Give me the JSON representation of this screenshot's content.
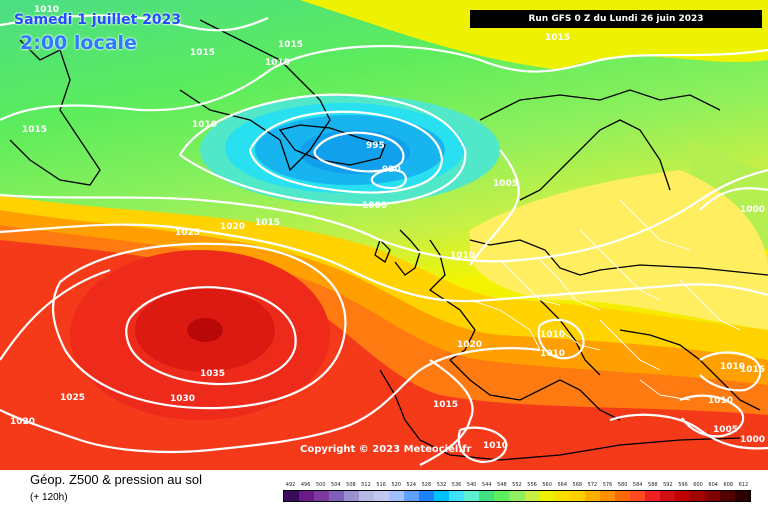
{
  "header": {
    "date_line": "Samedi 1 juillet 2023",
    "time_line": "2:00 locale",
    "run_banner": "Run GFS 0 Z du Lundi 26 juin 2023"
  },
  "copyright": "Copyright © 2023 Meteociel.fr",
  "footer": {
    "title": "Géop. Z500 & pression au sol",
    "subtitle": "(+ 120h)"
  },
  "scale": {
    "ticks": [
      "492",
      "496",
      "500",
      "504",
      "508",
      "512",
      "516",
      "520",
      "524",
      "528",
      "532",
      "536",
      "540",
      "544",
      "548",
      "552",
      "556",
      "560",
      "564",
      "568",
      "572",
      "576",
      "580",
      "584",
      "588",
      "592",
      "596",
      "600",
      "604",
      "608",
      "612"
    ],
    "colors": [
      "#3a0a5c",
      "#6a1a8a",
      "#7a3aa0",
      "#8060b8",
      "#9a90d0",
      "#b8b8e8",
      "#c0c8f0",
      "#a0c0ff",
      "#60a0ff",
      "#2080ff",
      "#00c0ff",
      "#40e0ff",
      "#60f0d0",
      "#40e080",
      "#60ee60",
      "#90f060",
      "#c8f040",
      "#f0f000",
      "#f8e000",
      "#ffd000",
      "#ffb000",
      "#ff9000",
      "#ff6a00",
      "#ff4a20",
      "#f02020",
      "#d01010",
      "#c00000",
      "#a00000",
      "#800000",
      "#500000",
      "#2a0000"
    ]
  },
  "pressure_labels": {
    "l1010a": "1010",
    "l1015a": "1015",
    "l1015b": "1015",
    "l1015c": "1015",
    "l1015d": "1015",
    "l1015e": "1015",
    "l1010b": "1010",
    "l995": "995",
    "l990": "990",
    "l1000a": "1000",
    "l1005a": "1005",
    "l1000b": "1000",
    "l1025a": "1025",
    "l1020a": "1020",
    "l1015f": "1015",
    "l1010c": "1010",
    "l1010d": "1010",
    "l1010e": "1010",
    "l1020b": "1020",
    "l1035": "1035",
    "l1030": "1030",
    "l1025b": "1025",
    "l1020c": "1020",
    "l1015g": "1015",
    "l1010f": "1010",
    "l1010g": "1010",
    "l1015h": "1015",
    "l1010h": "1010",
    "l1005b": "1005",
    "l1000c": "1000"
  }
}
